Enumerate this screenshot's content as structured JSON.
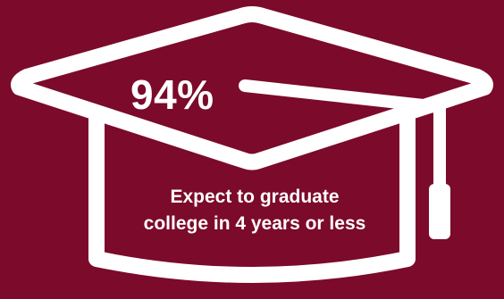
{
  "colors": {
    "background": "#7c0a2a",
    "foreground": "#ffffff"
  },
  "graphic": {
    "icon": "graduation-cap-icon"
  },
  "stat": {
    "value": "94%"
  },
  "caption": {
    "line1": "Expect to graduate",
    "line2": "college in 4 years or less"
  }
}
